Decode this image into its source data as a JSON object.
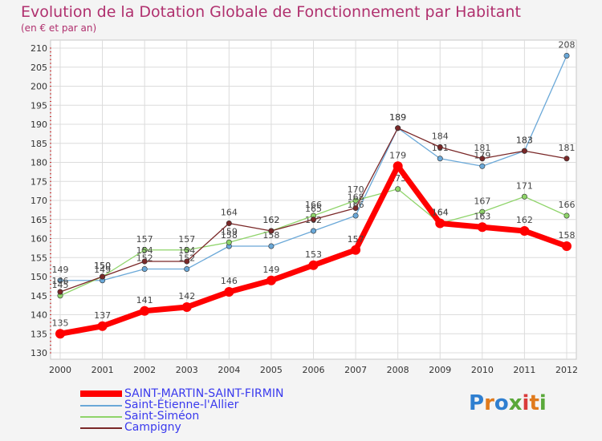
{
  "title": "Evolution de la Dotation Globale de Fonctionnement par Habitant",
  "subtitle": "(en € et par an)",
  "logo_text": "Proxiti",
  "chart_data": {
    "type": "line",
    "x": [
      "2000",
      "2001",
      "2002",
      "2003",
      "2004",
      "2005",
      "2006",
      "2007",
      "2008",
      "2009",
      "2010",
      "2011",
      "2012"
    ],
    "ylim": [
      130,
      210
    ],
    "yticks": [
      130,
      135,
      140,
      145,
      150,
      155,
      160,
      165,
      170,
      175,
      180,
      185,
      190,
      195,
      200,
      205,
      210
    ],
    "grid": true,
    "legend_position": "bottom",
    "series": [
      {
        "name": "SAINT-MARTIN-SAINT-FIRMIN",
        "color": "#ff0000",
        "values": [
          135,
          137,
          141,
          142,
          146,
          149,
          153,
          157,
          179,
          164,
          163,
          162,
          158
        ]
      },
      {
        "name": "Saint-Étienne-l'Allier",
        "color": "#6aa8d8",
        "values": [
          149,
          149,
          152,
          152,
          158,
          158,
          162,
          166,
          189,
          181,
          179,
          183,
          208
        ]
      },
      {
        "name": "Saint-Siméon",
        "color": "#8fd46a",
        "values": [
          145,
          150,
          157,
          157,
          159,
          162,
          166,
          170,
          173,
          164,
          167,
          171,
          166
        ]
      },
      {
        "name": "Campigny",
        "color": "#7a2828",
        "values": [
          146,
          150,
          154,
          154,
          164,
          162,
          165,
          168,
          189,
          184,
          181,
          183,
          181
        ]
      }
    ]
  }
}
